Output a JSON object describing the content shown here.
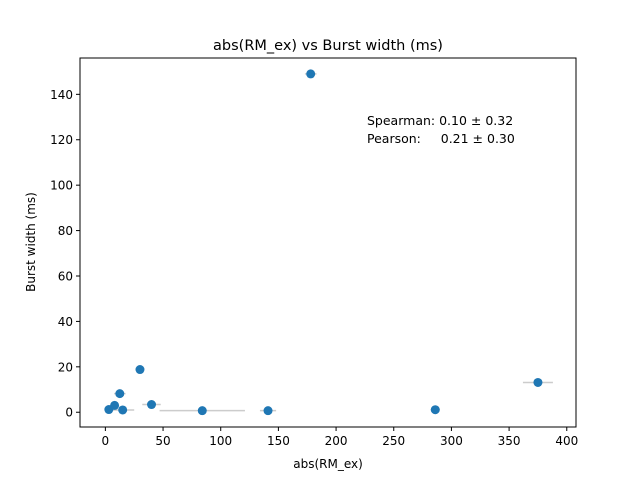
{
  "chart_data": {
    "type": "scatter",
    "title": "abs(RM_ex) vs Burst width (ms)",
    "xlabel": "abs(RM_ex)",
    "ylabel": "Burst width (ms)",
    "xlim": [
      -22,
      408
    ],
    "ylim": [
      -6.5,
      156
    ],
    "xticks": [
      0,
      50,
      100,
      150,
      200,
      250,
      300,
      350,
      400
    ],
    "yticks": [
      0,
      20,
      40,
      60,
      80,
      100,
      120,
      140
    ],
    "grid": false,
    "marker_color": "#1f77b4",
    "errorbar_color": "#cccccc",
    "annotation": {
      "line1": "Spearman: 0.10 ± 0.32",
      "line2": "Pearson:     0.21 ± 0.30"
    },
    "points": [
      {
        "x": 3,
        "y": 1.2,
        "xerr": 0
      },
      {
        "x": 8,
        "y": 3,
        "xerr": 3
      },
      {
        "x": 12.5,
        "y": 8.2,
        "xerr": 5
      },
      {
        "x": 15,
        "y": 1,
        "xerr": 10
      },
      {
        "x": 30,
        "y": 18.8,
        "xerr": 3
      },
      {
        "x": 40,
        "y": 3.4,
        "xerr": 8
      },
      {
        "x": 84,
        "y": 0.7,
        "xerr": 37
      },
      {
        "x": 141,
        "y": 0.7,
        "xerr": 7
      },
      {
        "x": 178,
        "y": 149,
        "xerr": 5
      },
      {
        "x": 286,
        "y": 1.1,
        "xerr": 4
      },
      {
        "x": 375,
        "y": 13.1,
        "xerr": 13
      }
    ]
  }
}
